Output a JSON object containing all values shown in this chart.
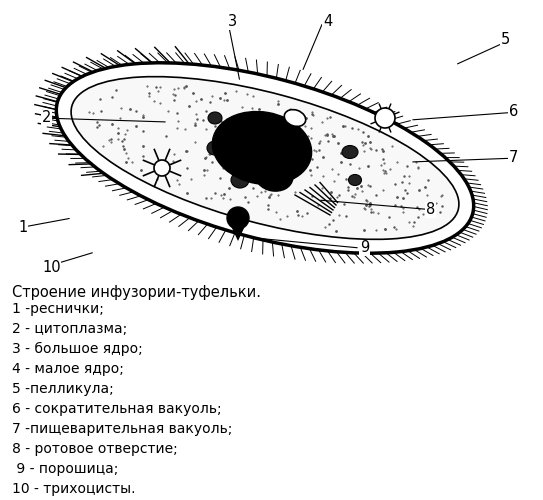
{
  "title": "Строение инфузории-туфельки.",
  "legend_lines": [
    "1 -реснички;",
    "2 - цитоплазма;",
    "3 - большое ядро;",
    "4 - малое ядро;",
    "5 -пелликула;",
    "6 - сократительная вакуоль;",
    "7 -пищеварительная вакуоль;",
    "8 - ротовое отверстие;",
    " 9 - порошица;",
    "10 - трихоцисты."
  ],
  "bg_color": "#ffffff",
  "label_color": "#000000",
  "font_size_legend_title": 10.5,
  "font_size_legend": 10.0,
  "font_size_labels": 10.5
}
